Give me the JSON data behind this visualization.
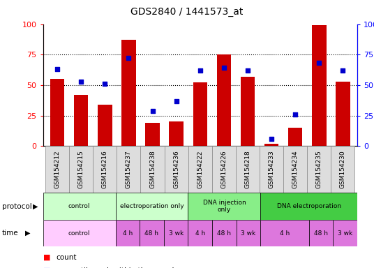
{
  "title": "GDS2840 / 1441573_at",
  "samples": [
    "GSM154212",
    "GSM154215",
    "GSM154216",
    "GSM154237",
    "GSM154238",
    "GSM154236",
    "GSM154222",
    "GSM154226",
    "GSM154218",
    "GSM154233",
    "GSM154234",
    "GSM154235",
    "GSM154230"
  ],
  "counts": [
    55,
    42,
    34,
    87,
    19,
    20,
    52,
    75,
    57,
    2,
    15,
    99,
    53
  ],
  "percentiles": [
    63,
    53,
    51,
    72,
    29,
    37,
    62,
    64,
    62,
    6,
    26,
    68,
    62
  ],
  "protocol_groups": [
    {
      "label": "control",
      "start": 0,
      "end": 3,
      "color": "#ccffcc"
    },
    {
      "label": "electroporation only",
      "start": 3,
      "end": 6,
      "color": "#ccffcc"
    },
    {
      "label": "DNA injection\nonly",
      "start": 6,
      "end": 9,
      "color": "#88ee88"
    },
    {
      "label": "DNA electroporation",
      "start": 9,
      "end": 13,
      "color": "#44cc44"
    }
  ],
  "time_groups": [
    {
      "label": "control",
      "start": 0,
      "end": 3,
      "color": "#ffccff"
    },
    {
      "label": "4 h",
      "start": 3,
      "end": 4,
      "color": "#ee88ee"
    },
    {
      "label": "48 h",
      "start": 4,
      "end": 5,
      "color": "#ee88ee"
    },
    {
      "label": "3 wk",
      "start": 5,
      "end": 6,
      "color": "#ee88ee"
    },
    {
      "label": "4 h",
      "start": 6,
      "end": 7,
      "color": "#ee88ee"
    },
    {
      "label": "48 h",
      "start": 7,
      "end": 8,
      "color": "#ee88ee"
    },
    {
      "label": "3 wk",
      "start": 8,
      "end": 9,
      "color": "#ee88ee"
    },
    {
      "label": "4 h",
      "start": 9,
      "end": 11,
      "color": "#ee88ee"
    },
    {
      "label": "48 h",
      "start": 11,
      "end": 12,
      "color": "#ee88ee"
    },
    {
      "label": "3 wk",
      "start": 12,
      "end": 13,
      "color": "#ee88ee"
    }
  ],
  "bar_color": "#cc0000",
  "dot_color": "#0000cc",
  "ylim": [
    0,
    100
  ],
  "yticks": [
    0,
    25,
    50,
    75,
    100
  ],
  "background_color": "#ffffff"
}
